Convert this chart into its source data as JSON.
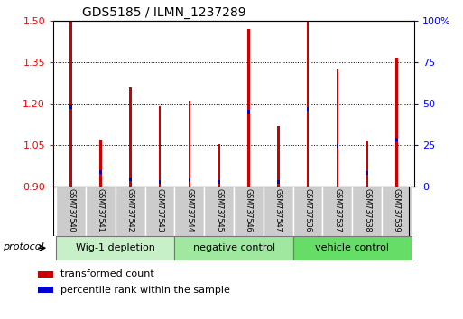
{
  "title": "GDS5185 / ILMN_1237289",
  "samples": [
    "GSM737540",
    "GSM737541",
    "GSM737542",
    "GSM737543",
    "GSM737544",
    "GSM737545",
    "GSM737546",
    "GSM737547",
    "GSM737536",
    "GSM737537",
    "GSM737538",
    "GSM737539"
  ],
  "transformed_count": [
    1.5,
    1.07,
    1.26,
    1.19,
    1.21,
    1.055,
    1.47,
    1.12,
    1.5,
    1.325,
    1.065,
    1.365
  ],
  "percentile_rank": [
    0.48,
    0.09,
    0.045,
    0.025,
    0.038,
    0.028,
    0.45,
    0.03,
    0.47,
    0.245,
    0.08,
    0.285
  ],
  "ymin": 0.9,
  "ymax": 1.5,
  "yticks": [
    0.9,
    1.05,
    1.2,
    1.35,
    1.5
  ],
  "right_yticks": [
    0,
    25,
    50,
    75,
    100
  ],
  "groups": [
    {
      "label": "Wig-1 depletion",
      "start": 0,
      "end": 4
    },
    {
      "label": "negative control",
      "start": 4,
      "end": 8
    },
    {
      "label": "vehicle control",
      "start": 8,
      "end": 12
    }
  ],
  "group_colors": [
    "#c8f0c8",
    "#a0e8a0",
    "#66dd66"
  ],
  "bar_color_red": "#cc0000",
  "bar_color_blue": "#0000cc",
  "bar_width": 0.08,
  "legend_label_red": "transformed count",
  "legend_label_blue": "percentile rank within the sample",
  "protocol_label": "protocol",
  "title_fontsize": 10,
  "tick_fontsize": 8
}
